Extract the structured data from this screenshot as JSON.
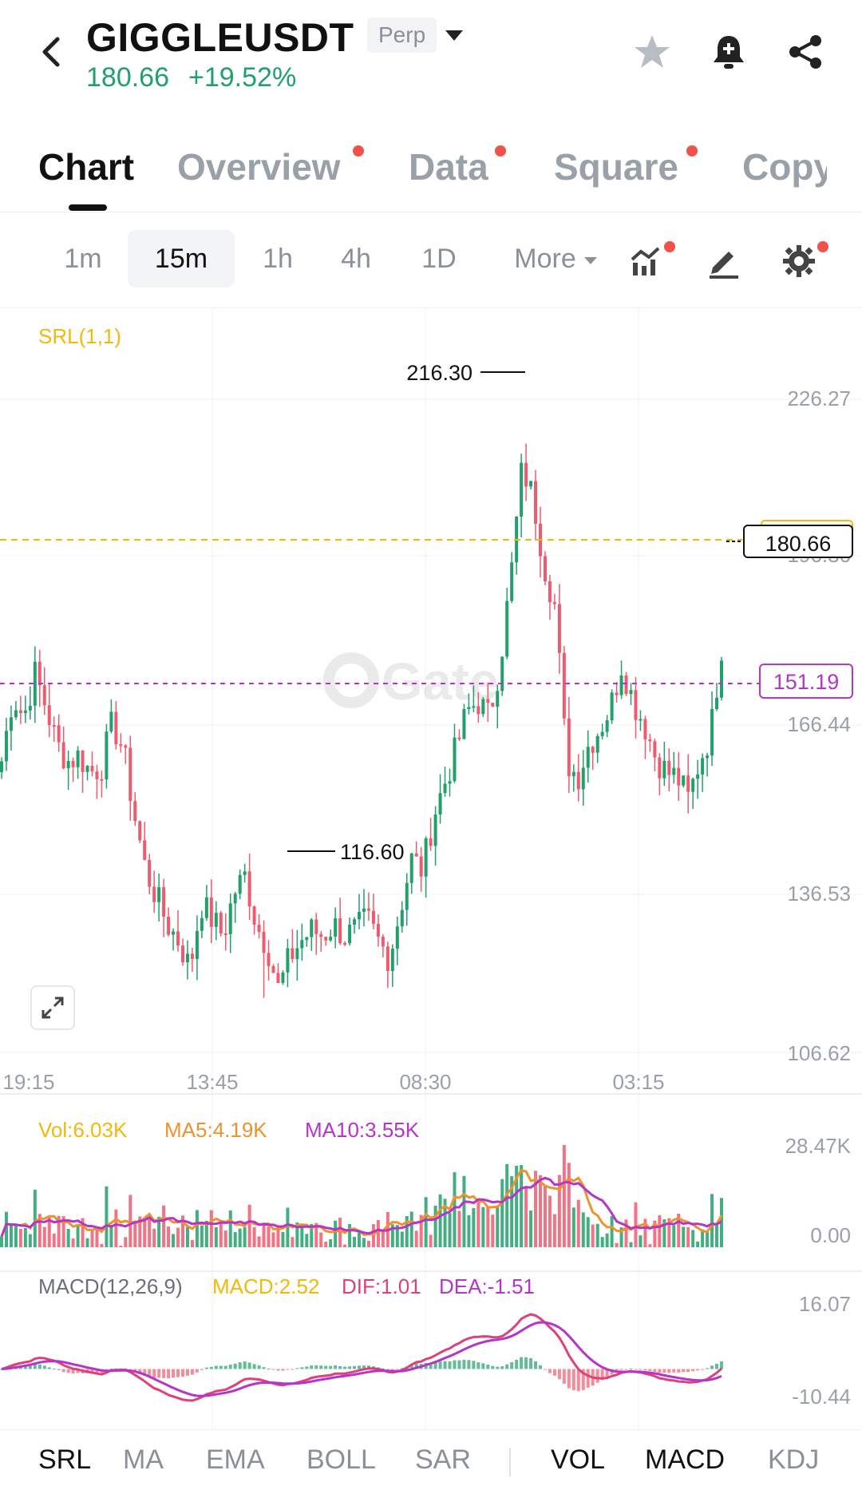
{
  "header": {
    "symbol": "GIGGLEUSDT",
    "contract_type": "Perp",
    "last_price": "180.66",
    "change_pct": "+19.52%",
    "icons": [
      "back-arrow-icon",
      "star-icon",
      "bell-plus-icon",
      "share-icon"
    ],
    "colors": {
      "up": "#22a06b",
      "down": "#ef5b6e"
    }
  },
  "tabs": [
    {
      "label": "Chart",
      "active": true,
      "dot": false
    },
    {
      "label": "Overview",
      "active": false,
      "dot": true
    },
    {
      "label": "Data",
      "active": false,
      "dot": true
    },
    {
      "label": "Square",
      "active": false,
      "dot": true
    },
    {
      "label": "Copy",
      "active": false,
      "dot": false
    }
  ],
  "intervals": [
    "1m",
    "15m",
    "1h",
    "4h",
    "1D"
  ],
  "interval_active": "15m",
  "more_label": "More",
  "tools": [
    "indicator-icon",
    "draw-pencil-icon",
    "settings-gear-icon"
  ],
  "main_chart": {
    "indicator_label": "SRL(1,1)",
    "watermark": "Gate",
    "y_ticks": [
      "226.27",
      "196.36",
      "166.44",
      "136.53",
      "106.62"
    ],
    "x_ticks": [
      "19:15",
      "13:45",
      "08:30",
      "03:15"
    ],
    "high_label": "216.30",
    "low_label": "116.60",
    "current_price_tag": "180.66",
    "srl_line_tag": "151.19",
    "colors": {
      "current_line": "#f0b90b",
      "srl_line": "#b535c8"
    }
  },
  "volume_panel": {
    "vol_label": "Vol:6.03K",
    "ma5_label": "MA5:4.19K",
    "ma10_label": "MA10:3.55K",
    "y_top": "28.47K",
    "y_bottom": "0.00",
    "colors": {
      "vol": "#f0b90b",
      "ma5": "#f0922b",
      "ma10": "#b535c8"
    }
  },
  "macd_panel": {
    "name_label": "MACD(12,26,9)",
    "macd_label": "MACD:2.52",
    "dif_label": "DIF:1.01",
    "dea_label": "DEA:-1.51",
    "y_top": "16.07",
    "y_bottom": "-10.44",
    "colors": {
      "macd": "#f0b90b",
      "dif": "#e0407a",
      "dea": "#b535c8"
    }
  },
  "bottom_indicators": {
    "main": [
      "SRL",
      "MA",
      "EMA",
      "BOLL",
      "SAR"
    ],
    "sub": [
      "VOL",
      "MACD",
      "KDJ"
    ],
    "active": [
      "SRL",
      "VOL",
      "MACD"
    ]
  },
  "chart_data": {
    "type": "candlestick",
    "interval": "15m",
    "y_range": [
      106.62,
      226.27
    ],
    "x_ticks": [
      "19:15",
      "13:45",
      "08:30",
      "03:15"
    ],
    "high": 216.3,
    "low": 116.6,
    "last": 180.66,
    "srl": 151.19,
    "close_path": [
      160,
      172,
      168,
      176,
      170,
      163,
      160,
      161,
      158,
      159,
      167,
      162,
      150,
      140,
      135,
      130,
      127,
      122,
      134,
      131,
      128,
      136,
      139,
      130,
      126,
      118,
      124,
      127,
      129,
      128,
      130,
      128,
      129,
      131,
      127,
      124,
      133,
      142,
      140,
      150,
      156,
      162,
      169,
      171,
      168,
      178,
      194,
      214,
      208,
      196,
      188,
      160,
      157,
      163,
      166,
      170,
      178,
      171,
      167,
      161,
      158,
      157,
      153,
      160,
      165,
      181
    ],
    "volume_y_range": [
      0,
      28.47
    ],
    "macd_y_range": [
      -10.44,
      16.07
    ]
  }
}
